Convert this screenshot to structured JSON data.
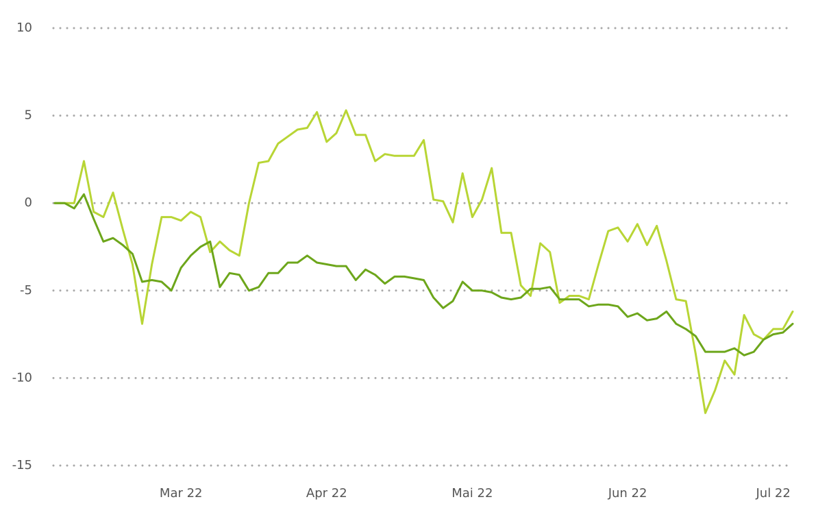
{
  "chart_data": {
    "type": "line",
    "categories": [
      null,
      null,
      null,
      null,
      null,
      null,
      null,
      null,
      null,
      null,
      null,
      null,
      null,
      "Mar 22",
      null,
      null,
      null,
      null,
      null,
      null,
      null,
      null,
      null,
      null,
      null,
      null,
      null,
      null,
      "Apr 22",
      null,
      null,
      null,
      null,
      null,
      null,
      null,
      null,
      null,
      null,
      null,
      null,
      null,
      null,
      "Mai 22",
      null,
      null,
      null,
      null,
      null,
      null,
      null,
      null,
      null,
      null,
      null,
      null,
      null,
      null,
      null,
      "Jun 22",
      null,
      null,
      null,
      null,
      null,
      null,
      null,
      null,
      null,
      null,
      null,
      null,
      null,
      null,
      "Jul 22",
      null,
      null
    ],
    "series": [
      {
        "color": "#b8d535",
        "values": [
          0,
          0,
          0,
          2.4,
          -0.5,
          -0.8,
          0.6,
          -1.5,
          -3.5,
          -6.9,
          -3.5,
          -0.8,
          -0.8,
          -1.0,
          -0.5,
          -0.8,
          -2.8,
          -2.2,
          -2.7,
          -3.0,
          0,
          2.3,
          2.4,
          3.4,
          3.8,
          4.2,
          4.3,
          5.2,
          3.5,
          4.0,
          5.3,
          3.9,
          3.9,
          2.4,
          2.8,
          2.7,
          2.7,
          2.7,
          3.6,
          0.2,
          0.1,
          -1.1,
          1.7,
          -0.8,
          0.2,
          2.0,
          -1.7,
          -1.7,
          -4.7,
          -5.3,
          -2.3,
          -2.8,
          -5.7,
          -5.3,
          -5.3,
          -5.5,
          -3.5,
          -1.6,
          -1.4,
          -2.2,
          -1.2,
          -2.4,
          -1.3,
          -3.3,
          -5.5,
          -5.6,
          -8.6,
          -12.0,
          -10.7,
          -9.0,
          -9.8,
          -6.4,
          -7.5,
          -7.8,
          -7.2,
          -7.2,
          -6.2
        ]
      },
      {
        "color": "#6da61b",
        "values": [
          0,
          0,
          -0.3,
          0.5,
          -0.9,
          -2.2,
          -2.0,
          -2.4,
          -2.9,
          -4.5,
          -4.4,
          -4.5,
          -5.0,
          -3.7,
          -3.0,
          -2.5,
          -2.2,
          -4.8,
          -4.0,
          -4.1,
          -5.0,
          -4.8,
          -4.0,
          -4.0,
          -3.4,
          -3.4,
          -3.0,
          -3.4,
          -3.5,
          -3.6,
          -3.6,
          -4.4,
          -3.8,
          -4.1,
          -4.6,
          -4.2,
          -4.2,
          -4.3,
          -4.4,
          -5.4,
          -6.0,
          -5.6,
          -4.5,
          -5.0,
          -5.0,
          -5.1,
          -5.4,
          -5.5,
          -5.4,
          -4.9,
          -4.9,
          -4.8,
          -5.5,
          -5.5,
          -5.5,
          -5.9,
          -5.8,
          -5.8,
          -5.9,
          -6.5,
          -6.3,
          -6.7,
          -6.6,
          -6.2,
          -6.9,
          -7.2,
          -7.6,
          -8.5,
          -8.5,
          -8.5,
          -8.3,
          -8.7,
          -8.5,
          -7.8,
          -7.5,
          -7.4,
          -6.9
        ]
      }
    ],
    "ylim": [
      -15,
      10
    ],
    "yticks": [
      -15,
      -10,
      -5,
      0,
      5,
      10
    ],
    "grid": true
  }
}
